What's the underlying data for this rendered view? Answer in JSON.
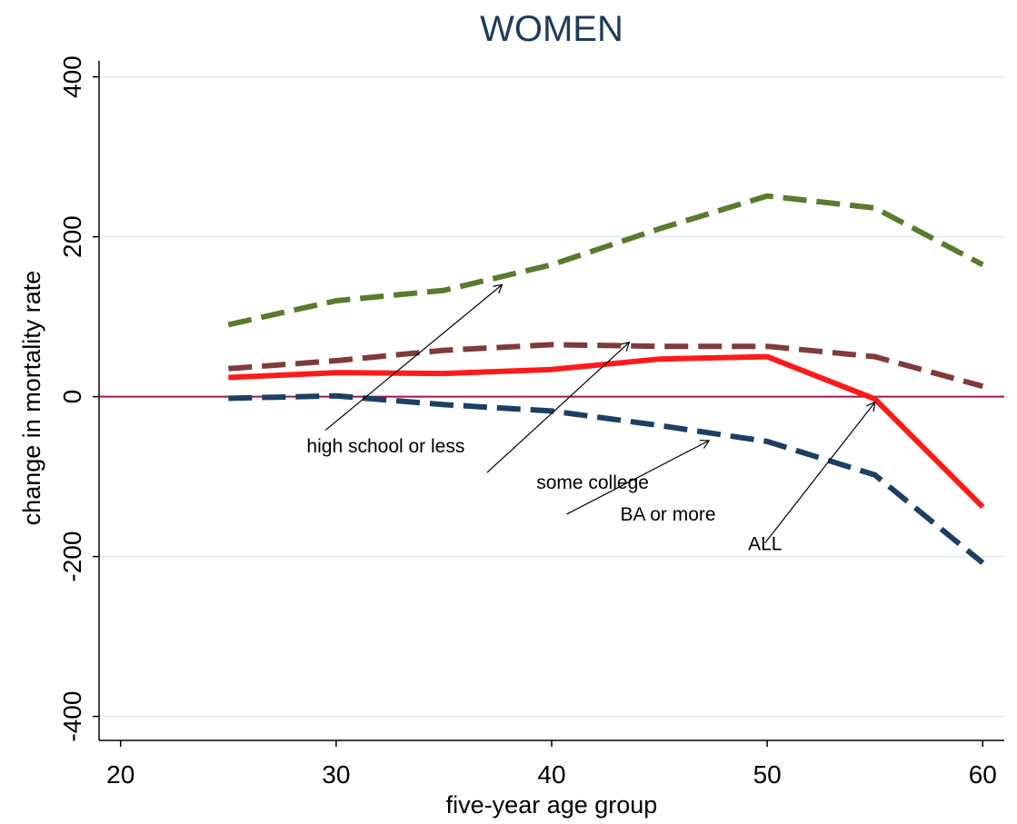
{
  "chart_data": {
    "type": "line",
    "title": "WOMEN",
    "xlabel": "five-year age group",
    "ylabel": "change in mortality rate",
    "xlim": [
      19,
      61
    ],
    "ylim": [
      -430,
      420
    ],
    "x_ticks": [
      20,
      30,
      40,
      50,
      60
    ],
    "x_tick_labels": [
      "20",
      "30",
      "40",
      "50",
      "60"
    ],
    "y_ticks": [
      -400,
      -200,
      0,
      200,
      400
    ],
    "y_tick_labels": [
      "-400",
      "-200",
      "0",
      "200",
      "400"
    ],
    "grid": true,
    "reference_line": 0,
    "x": [
      25,
      30,
      35,
      40,
      45,
      50,
      55,
      60
    ],
    "series": [
      {
        "key": "hs",
        "values": [
          90,
          120,
          133,
          165,
          210,
          251,
          236,
          165
        ],
        "color": "#5a7a2e",
        "style": "dashed"
      },
      {
        "key": "sc",
        "values": [
          35,
          45,
          58,
          65,
          63,
          63,
          50,
          13
        ],
        "color": "#7f3b3b",
        "style": "dashed"
      },
      {
        "key": "all",
        "values": [
          24,
          30,
          29,
          34,
          47,
          50,
          -3,
          -138
        ],
        "color": "#ff1a1a",
        "style": "solid"
      },
      {
        "key": "ba",
        "values": [
          -2,
          1,
          -10,
          -18,
          -36,
          -56,
          -98,
          -208
        ],
        "color": "#1d3f63",
        "style": "dashed"
      }
    ],
    "annotations": [
      {
        "text": "high school or less",
        "text_x": 32.3,
        "text_y": -70,
        "arrow_from": [
          29.5,
          -42
        ],
        "arrow_to": [
          37.7,
          140
        ]
      },
      {
        "text": "some college",
        "text_x": 41.9,
        "text_y": -115,
        "arrow_from": [
          37,
          -95
        ],
        "arrow_to": [
          43.6,
          68
        ]
      },
      {
        "text": "BA or more",
        "text_x": 45.4,
        "text_y": -155,
        "arrow_from": [
          40.7,
          -147
        ],
        "arrow_to": [
          47.3,
          -55
        ]
      },
      {
        "text": "ALL",
        "text_x": 49.9,
        "text_y": -192,
        "arrow_from": [
          49.9,
          -183
        ],
        "arrow_to": [
          55,
          -7
        ]
      }
    ]
  },
  "colors": {
    "title": "#1f3b5a",
    "reference_line": "#a0144a",
    "grid": "#e3efef"
  }
}
